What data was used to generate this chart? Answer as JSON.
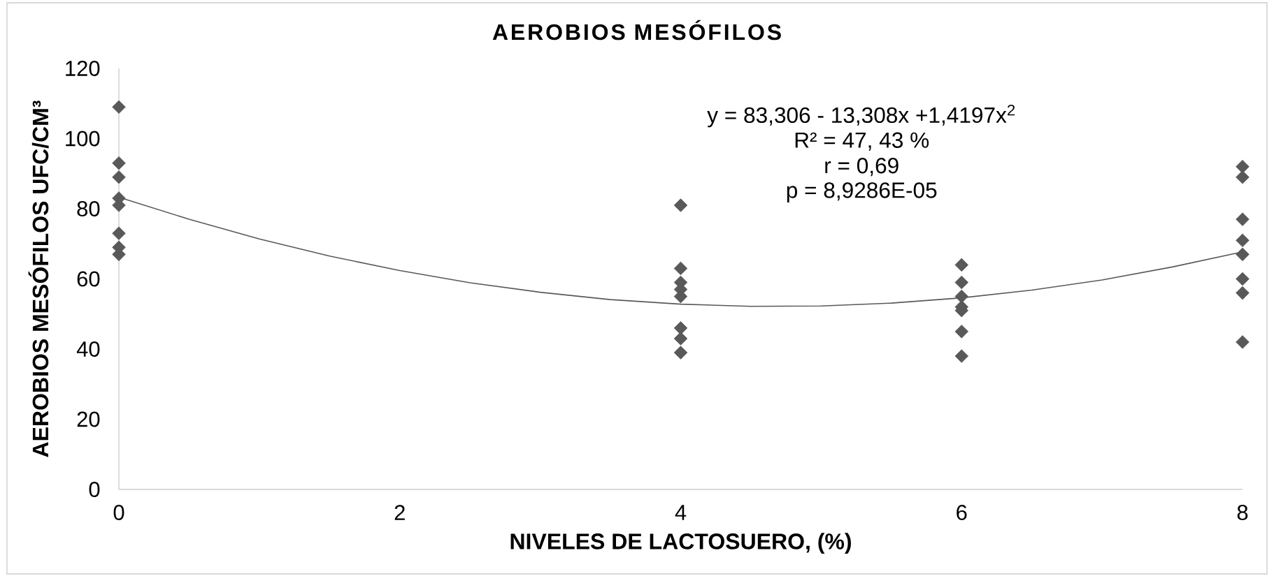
{
  "chart_data": {
    "type": "scatter",
    "title": "AEROBIOS MESÓFILOS",
    "xlabel": "NIVELES DE LACTOSUERO, (%)",
    "ylabel": "AEROBIOS MESÓFILOS UFC/CM³",
    "xlim": [
      0,
      8
    ],
    "xticks": [
      0,
      2,
      4,
      6,
      8
    ],
    "ylim": [
      0,
      120
    ],
    "yticks": [
      0,
      20,
      40,
      60,
      80,
      100,
      120
    ],
    "grid": false,
    "legend": false,
    "series": [
      {
        "type": "scatter",
        "color": "#595959",
        "marker": "diamond",
        "x": [
          0,
          0,
          0,
          0,
          0,
          0,
          0,
          0,
          4,
          4,
          4,
          4,
          4,
          4,
          4,
          4,
          6,
          6,
          6,
          6,
          6,
          6,
          6,
          8,
          8,
          8,
          8,
          8,
          8,
          8,
          8
        ],
        "values": [
          109,
          93,
          89,
          83,
          81,
          73,
          69,
          67,
          81,
          63,
          59,
          57,
          55,
          46,
          43,
          39,
          64,
          59,
          55,
          52,
          51,
          45,
          38,
          92,
          89,
          77,
          71,
          67,
          60,
          56,
          42
        ]
      },
      {
        "type": "line",
        "color": "#595959",
        "marker": "none",
        "line_style": "solid",
        "x": [
          0,
          0.5,
          1,
          1.5,
          2,
          2.5,
          3,
          3.5,
          4,
          4.5,
          5,
          5.5,
          6,
          6.5,
          7,
          7.5,
          8
        ],
        "values": [
          83.3,
          77.0,
          71.4,
          66.5,
          62.4,
          58.9,
          56.2,
          54.1,
          52.8,
          52.2,
          52.3,
          53.1,
          54.6,
          56.8,
          59.7,
          63.4,
          67.7
        ]
      }
    ],
    "annotations": [
      "y = 83,306 - 13,308x +1,4197x$^{2}$",
      "R² = 47, 43 %",
      "r = 0,69",
      "p = 8,9286E-05"
    ]
  }
}
